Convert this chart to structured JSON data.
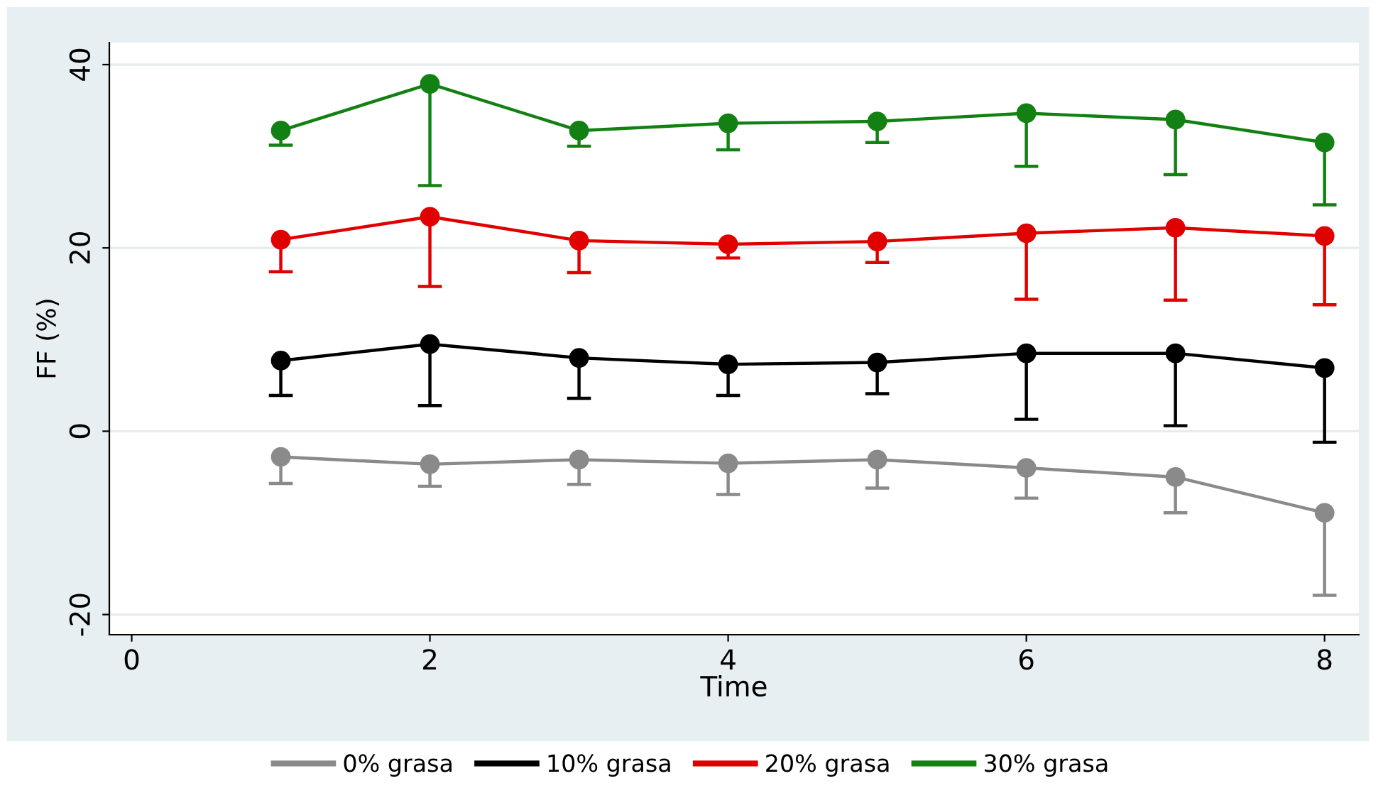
{
  "chart_data": {
    "type": "line",
    "xlabel": "Time",
    "ylabel": "FF (%)",
    "xlim": [
      -0.15,
      8.23
    ],
    "ylim": [
      -22.2,
      42.4
    ],
    "xticks": [
      0,
      2,
      4,
      6,
      8
    ],
    "yticks": [
      -20,
      0,
      20,
      40
    ],
    "grid": "y",
    "legend": "bottom",
    "marker": "circle",
    "line_style": "solid",
    "x": [
      1,
      2,
      3,
      4,
      5,
      6,
      7,
      8
    ],
    "series": [
      {
        "name": "0% grasa",
        "color": "#8a8a8a",
        "values": [
          -2.8,
          -3.6,
          -3.1,
          -3.5,
          -3.1,
          -4.0,
          -5.0,
          -8.9
        ],
        "errors": [
          [
            -5.7,
            -2.8
          ],
          [
            -6.0,
            -3.6
          ],
          [
            -5.8,
            -3.1
          ],
          [
            -6.9,
            -3.5
          ],
          [
            -6.2,
            -3.1
          ],
          [
            -7.3,
            -4.0
          ],
          [
            -8.9,
            -5.0
          ],
          [
            -17.9,
            -8.9
          ]
        ]
      },
      {
        "name": "10% grasa",
        "color": "#000000",
        "values": [
          7.7,
          9.5,
          8.0,
          7.3,
          7.5,
          8.5,
          8.5,
          6.9
        ],
        "errors": [
          [
            3.9,
            7.7
          ],
          [
            2.8,
            9.5
          ],
          [
            3.6,
            8.0
          ],
          [
            3.9,
            7.3
          ],
          [
            4.1,
            7.5
          ],
          [
            1.3,
            8.5
          ],
          [
            0.6,
            8.5
          ],
          [
            -1.2,
            6.9
          ]
        ]
      },
      {
        "name": "20% grasa",
        "color": "#e00000",
        "values": [
          20.9,
          23.4,
          20.8,
          20.4,
          20.7,
          21.6,
          22.2,
          21.3
        ],
        "errors": [
          [
            17.4,
            20.9
          ],
          [
            15.8,
            23.4
          ],
          [
            17.3,
            20.8
          ],
          [
            18.9,
            20.4
          ],
          [
            18.4,
            20.7
          ],
          [
            14.4,
            21.6
          ],
          [
            14.3,
            22.2
          ],
          [
            13.8,
            21.3
          ]
        ]
      },
      {
        "name": "30% grasa",
        "color": "#138013",
        "values": [
          32.8,
          37.9,
          32.8,
          33.6,
          33.8,
          34.7,
          34.0,
          31.5
        ],
        "errors": [
          [
            31.2,
            32.8
          ],
          [
            26.8,
            37.9
          ],
          [
            31.1,
            32.8
          ],
          [
            30.7,
            33.6
          ],
          [
            31.5,
            33.8
          ],
          [
            28.9,
            34.7
          ],
          [
            28.0,
            34.0
          ],
          [
            24.7,
            31.5
          ]
        ]
      }
    ]
  }
}
